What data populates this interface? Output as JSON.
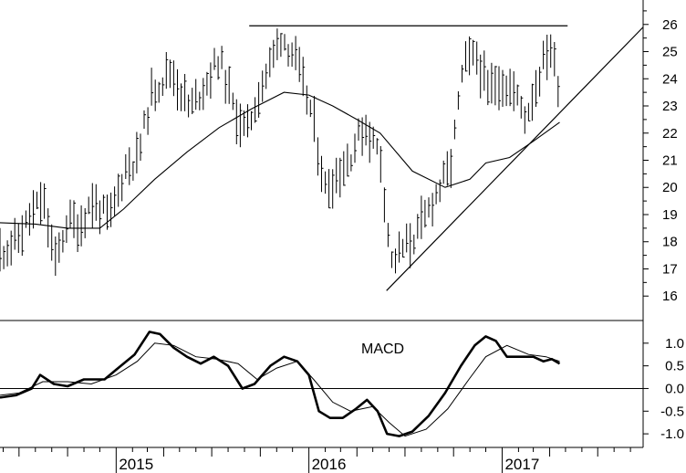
{
  "chart_data": [
    {
      "type": "ohlc",
      "title": "",
      "xlabel": "",
      "ylabel": "",
      "ylim": [
        15.1,
        26.9
      ],
      "yticks": [
        16,
        17,
        18,
        19,
        20,
        21,
        22,
        23,
        24,
        25,
        26
      ],
      "x_axis": {
        "type": "time",
        "range": [
          "2014-05-26",
          "2017-09-25"
        ],
        "year_labels": [
          {
            "label": "2015",
            "date": "2015-01-01"
          },
          {
            "label": "2016",
            "date": "2016-01-01"
          },
          {
            "label": "2017",
            "date": "2017-01-01"
          }
        ]
      },
      "bar_interval": "weekly",
      "price_path_x": [
        "2014-05-26",
        "2014-06-25",
        "2014-07-25",
        "2014-08-15",
        "2014-09-08",
        "2014-10-01",
        "2014-10-25",
        "2014-11-15",
        "2014-12-20",
        "2015-01-20",
        "2015-02-10",
        "2015-03-10",
        "2015-04-15",
        "2015-05-20",
        "2015-06-20",
        "2015-07-15",
        "2015-08-10",
        "2015-09-05",
        "2015-09-28",
        "2015-10-20",
        "2015-11-10",
        "2015-12-05",
        "2016-01-05",
        "2016-02-01",
        "2016-02-25",
        "2016-03-20",
        "2016-04-15",
        "2016-05-15",
        "2016-06-05",
        "2016-06-25",
        "2016-07-25",
        "2016-08-25",
        "2016-09-25",
        "2016-10-20",
        "2016-11-15",
        "2016-12-05",
        "2016-12-25",
        "2017-01-20",
        "2017-02-15",
        "2017-03-10",
        "2017-04-01",
        "2017-04-20"
      ],
      "price_path_y": [
        17.6,
        18.0,
        19.0,
        19.6,
        17.2,
        18.8,
        18.6,
        19.5,
        18.8,
        20.8,
        21.0,
        23.5,
        24.3,
        22.9,
        23.8,
        24.8,
        23.0,
        22.0,
        23.5,
        24.5,
        25.6,
        24.8,
        22.8,
        20.0,
        20.5,
        21.2,
        22.3,
        21.2,
        17.2,
        17.7,
        18.3,
        19.6,
        20.7,
        24.5,
        24.8,
        23.5,
        24.0,
        23.6,
        22.6,
        24.0,
        25.3,
        23.6
      ],
      "moving_average": {
        "x": [
          "2014-05-26",
          "2014-08-01",
          "2014-10-01",
          "2014-12-01",
          "2015-01-15",
          "2015-03-15",
          "2015-05-15",
          "2015-07-15",
          "2015-09-15",
          "2015-11-15",
          "2016-01-01",
          "2016-02-15",
          "2016-04-01",
          "2016-05-15",
          "2016-07-15",
          "2016-09-15",
          "2016-11-01",
          "2016-12-01",
          "2017-01-15",
          "2017-03-01",
          "2017-04-20"
        ],
        "y": [
          18.7,
          18.65,
          18.5,
          18.5,
          19.2,
          20.3,
          21.3,
          22.2,
          22.9,
          23.5,
          23.4,
          23.0,
          22.5,
          22.0,
          20.6,
          20.0,
          20.3,
          20.9,
          21.1,
          21.7,
          22.4
        ]
      },
      "resistance_line": {
        "x": [
          "2015-09-10",
          "2017-05-05"
        ],
        "y": [
          25.95,
          25.95
        ]
      },
      "trend_line": {
        "x": [
          "2016-05-27",
          "2017-09-25"
        ],
        "y": [
          16.2,
          25.9
        ]
      }
    },
    {
      "type": "line",
      "title": "MACD",
      "ylim": [
        -1.3,
        1.5
      ],
      "yticks": [
        -1.0,
        -0.5,
        0.0,
        0.5,
        1.0
      ],
      "ytick_labels": [
        "-1.0",
        "-0.5",
        "0.0",
        "0.5",
        "1.0"
      ],
      "zero_line": true,
      "series": [
        {
          "style": "thick",
          "x": [
            "2014-05-26",
            "2014-06-25",
            "2014-07-25",
            "2014-08-10",
            "2014-09-05",
            "2014-10-01",
            "2014-11-01",
            "2014-12-10",
            "2015-01-10",
            "2015-02-05",
            "2015-03-05",
            "2015-03-25",
            "2015-04-20",
            "2015-05-15",
            "2015-06-10",
            "2015-07-05",
            "2015-08-01",
            "2015-08-28",
            "2015-09-20",
            "2015-10-20",
            "2015-11-15",
            "2015-12-10",
            "2016-01-01",
            "2016-01-20",
            "2016-02-10",
            "2016-03-05",
            "2016-03-30",
            "2016-04-20",
            "2016-05-10",
            "2016-05-28",
            "2016-06-20",
            "2016-07-15",
            "2016-08-15",
            "2016-09-15",
            "2016-10-15",
            "2016-11-10",
            "2016-12-01",
            "2016-12-20",
            "2017-01-10",
            "2017-02-05",
            "2017-03-01",
            "2017-03-20",
            "2017-04-05",
            "2017-04-20"
          ],
          "y": [
            -0.2,
            -0.15,
            0.0,
            0.3,
            0.1,
            0.05,
            0.2,
            0.2,
            0.5,
            0.75,
            1.25,
            1.2,
            0.9,
            0.7,
            0.55,
            0.7,
            0.5,
            0.0,
            0.1,
            0.5,
            0.7,
            0.6,
            0.3,
            -0.5,
            -0.65,
            -0.65,
            -0.45,
            -0.25,
            -0.5,
            -1.0,
            -1.05,
            -0.95,
            -0.6,
            -0.1,
            0.5,
            0.95,
            1.15,
            1.05,
            0.7,
            0.7,
            0.7,
            0.6,
            0.65,
            0.55
          ]
        },
        {
          "style": "thin",
          "x": [
            "2014-05-26",
            "2014-07-01",
            "2014-08-15",
            "2014-10-01",
            "2014-11-15",
            "2015-01-01",
            "2015-02-10",
            "2015-03-15",
            "2015-04-20",
            "2015-06-01",
            "2015-07-10",
            "2015-08-20",
            "2015-09-25",
            "2015-11-01",
            "2015-12-10",
            "2016-01-10",
            "2016-02-15",
            "2016-03-20",
            "2016-05-01",
            "2016-06-01",
            "2016-07-01",
            "2016-08-10",
            "2016-09-20",
            "2016-10-30",
            "2016-12-01",
            "2017-01-10",
            "2017-02-20",
            "2017-03-25",
            "2017-04-20"
          ],
          "y": [
            -0.15,
            -0.1,
            0.15,
            0.15,
            0.1,
            0.3,
            0.6,
            1.0,
            0.95,
            0.7,
            0.65,
            0.55,
            0.2,
            0.45,
            0.6,
            0.2,
            -0.3,
            -0.5,
            -0.4,
            -0.75,
            -1.05,
            -0.9,
            -0.45,
            0.2,
            0.7,
            0.95,
            0.75,
            0.7,
            0.6
          ]
        }
      ]
    }
  ]
}
